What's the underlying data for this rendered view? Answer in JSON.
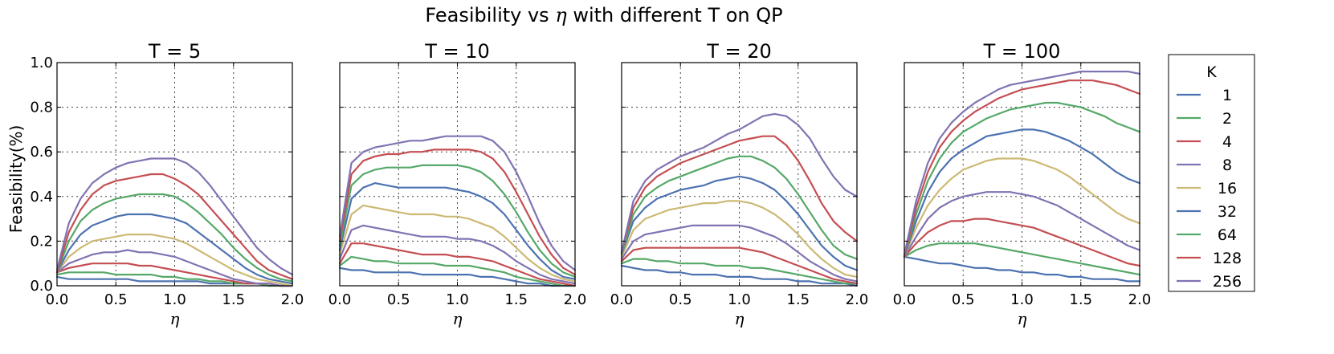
{
  "chart_data": {
    "type": "line",
    "title": "Feasibility vs η with different T on QP",
    "title_parts": {
      "before": "Feasibility vs ",
      "symbol": "η",
      "after": " with different T on QP"
    },
    "xlabel": "η",
    "ylabel": "Feasibility(%)",
    "xlim": [
      0.0,
      2.0
    ],
    "ylim": [
      0.0,
      1.0
    ],
    "xticks": [
      "0.0",
      "0.5",
      "1.0",
      "1.5",
      "2.0"
    ],
    "yticks": [
      "0.0",
      "0.2",
      "0.4",
      "0.6",
      "0.8",
      "1.0"
    ],
    "grid": true,
    "legend": {
      "title": "K",
      "placement": "outside-right",
      "entries": [
        "1",
        "2",
        "4",
        "8",
        "16",
        "32",
        "64",
        "128",
        "256"
      ]
    },
    "series_colors": [
      "#4c72b0",
      "#55a868",
      "#c44e52",
      "#8172b2",
      "#ccb974",
      "#4c72b0",
      "#55a868",
      "#c44e52",
      "#8172b2"
    ],
    "x": [
      0.0,
      0.1,
      0.2,
      0.3,
      0.4,
      0.5,
      0.6,
      0.7,
      0.8,
      0.9,
      1.0,
      1.1,
      1.2,
      1.3,
      1.4,
      1.5,
      1.6,
      1.7,
      1.8,
      1.9,
      2.0
    ],
    "panels": [
      {
        "title": "T = 5",
        "series": [
          {
            "name": "1",
            "values": [
              0.04,
              0.03,
              0.03,
              0.03,
              0.03,
              0.03,
              0.03,
              0.02,
              0.02,
              0.02,
              0.02,
              0.02,
              0.02,
              0.01,
              0.01,
              0.01,
              0.01,
              0.01,
              0.01,
              0.0,
              0.0
            ]
          },
          {
            "name": "2",
            "values": [
              0.05,
              0.06,
              0.06,
              0.06,
              0.06,
              0.05,
              0.05,
              0.05,
              0.05,
              0.04,
              0.04,
              0.03,
              0.03,
              0.02,
              0.02,
              0.01,
              0.01,
              0.01,
              0.0,
              0.0,
              0.0
            ]
          },
          {
            "name": "4",
            "values": [
              0.06,
              0.08,
              0.09,
              0.1,
              0.1,
              0.1,
              0.1,
              0.09,
              0.09,
              0.08,
              0.07,
              0.06,
              0.05,
              0.04,
              0.03,
              0.02,
              0.01,
              0.01,
              0.01,
              0.0,
              0.0
            ]
          },
          {
            "name": "8",
            "values": [
              0.06,
              0.1,
              0.12,
              0.14,
              0.15,
              0.15,
              0.16,
              0.15,
              0.15,
              0.14,
              0.13,
              0.11,
              0.09,
              0.07,
              0.05,
              0.03,
              0.02,
              0.01,
              0.01,
              0.0,
              0.0
            ]
          },
          {
            "name": "16",
            "values": [
              0.06,
              0.13,
              0.17,
              0.2,
              0.21,
              0.22,
              0.23,
              0.23,
              0.23,
              0.22,
              0.21,
              0.19,
              0.16,
              0.13,
              0.1,
              0.07,
              0.05,
              0.03,
              0.02,
              0.01,
              0.0
            ]
          },
          {
            "name": "32",
            "values": [
              0.06,
              0.16,
              0.23,
              0.27,
              0.29,
              0.31,
              0.32,
              0.32,
              0.32,
              0.31,
              0.3,
              0.28,
              0.24,
              0.2,
              0.16,
              0.12,
              0.08,
              0.05,
              0.03,
              0.02,
              0.01
            ]
          },
          {
            "name": "64",
            "values": [
              0.06,
              0.2,
              0.29,
              0.34,
              0.37,
              0.39,
              0.4,
              0.41,
              0.41,
              0.41,
              0.4,
              0.37,
              0.33,
              0.28,
              0.23,
              0.17,
              0.12,
              0.08,
              0.05,
              0.03,
              0.02
            ]
          },
          {
            "name": "128",
            "values": [
              0.06,
              0.24,
              0.34,
              0.41,
              0.45,
              0.47,
              0.48,
              0.49,
              0.5,
              0.5,
              0.48,
              0.45,
              0.41,
              0.35,
              0.29,
              0.23,
              0.17,
              0.11,
              0.07,
              0.05,
              0.03
            ]
          },
          {
            "name": "256",
            "values": [
              0.07,
              0.28,
              0.39,
              0.46,
              0.5,
              0.53,
              0.55,
              0.56,
              0.57,
              0.57,
              0.57,
              0.55,
              0.51,
              0.45,
              0.38,
              0.31,
              0.24,
              0.17,
              0.12,
              0.08,
              0.05
            ]
          }
        ]
      },
      {
        "title": "T = 10",
        "series": [
          {
            "name": "1",
            "values": [
              0.08,
              0.07,
              0.07,
              0.06,
              0.06,
              0.06,
              0.06,
              0.05,
              0.05,
              0.05,
              0.05,
              0.05,
              0.04,
              0.04,
              0.03,
              0.02,
              0.01,
              0.01,
              0.0,
              0.0,
              0.0
            ]
          },
          {
            "name": "2",
            "values": [
              0.09,
              0.13,
              0.12,
              0.11,
              0.11,
              0.1,
              0.1,
              0.1,
              0.1,
              0.09,
              0.09,
              0.09,
              0.08,
              0.07,
              0.06,
              0.04,
              0.03,
              0.02,
              0.01,
              0.0,
              0.0
            ]
          },
          {
            "name": "4",
            "values": [
              0.1,
              0.19,
              0.19,
              0.18,
              0.17,
              0.16,
              0.15,
              0.14,
              0.14,
              0.14,
              0.13,
              0.13,
              0.12,
              0.11,
              0.09,
              0.07,
              0.05,
              0.03,
              0.02,
              0.01,
              0.0
            ]
          },
          {
            "name": "8",
            "values": [
              0.12,
              0.25,
              0.27,
              0.26,
              0.25,
              0.24,
              0.23,
              0.22,
              0.22,
              0.22,
              0.21,
              0.21,
              0.2,
              0.18,
              0.15,
              0.11,
              0.08,
              0.05,
              0.03,
              0.02,
              0.01
            ]
          },
          {
            "name": "16",
            "values": [
              0.14,
              0.32,
              0.36,
              0.35,
              0.34,
              0.33,
              0.32,
              0.32,
              0.32,
              0.31,
              0.31,
              0.3,
              0.28,
              0.26,
              0.22,
              0.17,
              0.12,
              0.08,
              0.05,
              0.03,
              0.02
            ]
          },
          {
            "name": "32",
            "values": [
              0.16,
              0.39,
              0.44,
              0.46,
              0.45,
              0.44,
              0.44,
              0.44,
              0.44,
              0.44,
              0.43,
              0.42,
              0.4,
              0.37,
              0.32,
              0.25,
              0.18,
              0.12,
              0.07,
              0.04,
              0.03
            ]
          },
          {
            "name": "64",
            "values": [
              0.18,
              0.45,
              0.5,
              0.52,
              0.53,
              0.53,
              0.53,
              0.54,
              0.54,
              0.54,
              0.54,
              0.53,
              0.51,
              0.47,
              0.41,
              0.33,
              0.24,
              0.16,
              0.1,
              0.06,
              0.04
            ]
          },
          {
            "name": "128",
            "values": [
              0.2,
              0.5,
              0.56,
              0.58,
              0.59,
              0.59,
              0.6,
              0.6,
              0.61,
              0.61,
              0.61,
              0.61,
              0.6,
              0.57,
              0.51,
              0.42,
              0.32,
              0.22,
              0.14,
              0.08,
              0.05
            ]
          },
          {
            "name": "256",
            "values": [
              0.22,
              0.55,
              0.6,
              0.62,
              0.63,
              0.64,
              0.65,
              0.65,
              0.66,
              0.67,
              0.67,
              0.67,
              0.67,
              0.65,
              0.6,
              0.51,
              0.4,
              0.28,
              0.18,
              0.11,
              0.07
            ]
          }
        ]
      },
      {
        "title": "T = 20",
        "series": [
          {
            "name": "1",
            "values": [
              0.09,
              0.08,
              0.07,
              0.07,
              0.06,
              0.06,
              0.05,
              0.05,
              0.05,
              0.04,
              0.04,
              0.04,
              0.03,
              0.03,
              0.03,
              0.02,
              0.02,
              0.01,
              0.01,
              0.01,
              0.0
            ]
          },
          {
            "name": "2",
            "values": [
              0.1,
              0.12,
              0.12,
              0.11,
              0.11,
              0.1,
              0.1,
              0.1,
              0.09,
              0.09,
              0.09,
              0.08,
              0.08,
              0.07,
              0.06,
              0.05,
              0.04,
              0.03,
              0.02,
              0.01,
              0.01
            ]
          },
          {
            "name": "4",
            "values": [
              0.11,
              0.16,
              0.17,
              0.17,
              0.17,
              0.17,
              0.17,
              0.17,
              0.17,
              0.17,
              0.17,
              0.16,
              0.15,
              0.13,
              0.11,
              0.09,
              0.07,
              0.05,
              0.03,
              0.02,
              0.01
            ]
          },
          {
            "name": "8",
            "values": [
              0.12,
              0.2,
              0.23,
              0.24,
              0.25,
              0.26,
              0.27,
              0.27,
              0.27,
              0.27,
              0.27,
              0.26,
              0.24,
              0.22,
              0.19,
              0.15,
              0.11,
              0.08,
              0.05,
              0.03,
              0.02
            ]
          },
          {
            "name": "16",
            "values": [
              0.13,
              0.25,
              0.3,
              0.32,
              0.34,
              0.35,
              0.36,
              0.37,
              0.37,
              0.38,
              0.38,
              0.37,
              0.35,
              0.32,
              0.28,
              0.23,
              0.17,
              0.12,
              0.08,
              0.05,
              0.04
            ]
          },
          {
            "name": "32",
            "values": [
              0.14,
              0.29,
              0.35,
              0.39,
              0.41,
              0.43,
              0.44,
              0.45,
              0.47,
              0.48,
              0.49,
              0.48,
              0.46,
              0.43,
              0.38,
              0.32,
              0.25,
              0.18,
              0.13,
              0.09,
              0.07
            ]
          },
          {
            "name": "64",
            "values": [
              0.14,
              0.32,
              0.4,
              0.44,
              0.47,
              0.49,
              0.51,
              0.53,
              0.55,
              0.57,
              0.58,
              0.58,
              0.56,
              0.53,
              0.48,
              0.41,
              0.33,
              0.25,
              0.18,
              0.14,
              0.12
            ]
          },
          {
            "name": "128",
            "values": [
              0.15,
              0.35,
              0.44,
              0.49,
              0.52,
              0.55,
              0.57,
              0.59,
              0.61,
              0.63,
              0.65,
              0.66,
              0.67,
              0.67,
              0.63,
              0.56,
              0.47,
              0.37,
              0.29,
              0.24,
              0.2
            ]
          },
          {
            "name": "256",
            "values": [
              0.15,
              0.38,
              0.47,
              0.52,
              0.55,
              0.58,
              0.6,
              0.62,
              0.65,
              0.68,
              0.7,
              0.73,
              0.76,
              0.77,
              0.76,
              0.72,
              0.66,
              0.57,
              0.49,
              0.43,
              0.4
            ]
          }
        ]
      },
      {
        "title": "T = 100",
        "series": [
          {
            "name": "1",
            "values": [
              0.13,
              0.12,
              0.11,
              0.1,
              0.1,
              0.09,
              0.08,
              0.08,
              0.07,
              0.07,
              0.06,
              0.06,
              0.05,
              0.05,
              0.04,
              0.04,
              0.03,
              0.03,
              0.03,
              0.02,
              0.02
            ]
          },
          {
            "name": "2",
            "values": [
              0.13,
              0.16,
              0.18,
              0.19,
              0.19,
              0.19,
              0.19,
              0.18,
              0.17,
              0.16,
              0.15,
              0.14,
              0.13,
              0.12,
              0.11,
              0.1,
              0.09,
              0.08,
              0.07,
              0.06,
              0.05
            ]
          },
          {
            "name": "4",
            "values": [
              0.13,
              0.19,
              0.24,
              0.27,
              0.29,
              0.29,
              0.3,
              0.3,
              0.29,
              0.28,
              0.27,
              0.26,
              0.24,
              0.22,
              0.2,
              0.18,
              0.16,
              0.14,
              0.12,
              0.1,
              0.09
            ]
          },
          {
            "name": "8",
            "values": [
              0.13,
              0.22,
              0.3,
              0.35,
              0.38,
              0.4,
              0.41,
              0.42,
              0.42,
              0.42,
              0.41,
              0.4,
              0.38,
              0.36,
              0.33,
              0.3,
              0.27,
              0.24,
              0.21,
              0.18,
              0.16
            ]
          },
          {
            "name": "16",
            "values": [
              0.13,
              0.26,
              0.36,
              0.43,
              0.48,
              0.52,
              0.54,
              0.56,
              0.57,
              0.57,
              0.57,
              0.56,
              0.54,
              0.52,
              0.49,
              0.45,
              0.41,
              0.37,
              0.33,
              0.3,
              0.28
            ]
          },
          {
            "name": "32",
            "values": [
              0.13,
              0.29,
              0.42,
              0.51,
              0.57,
              0.61,
              0.64,
              0.67,
              0.68,
              0.69,
              0.7,
              0.7,
              0.69,
              0.67,
              0.65,
              0.62,
              0.59,
              0.55,
              0.51,
              0.48,
              0.46
            ]
          },
          {
            "name": "64",
            "values": [
              0.13,
              0.32,
              0.47,
              0.57,
              0.64,
              0.69,
              0.72,
              0.75,
              0.77,
              0.79,
              0.8,
              0.81,
              0.82,
              0.82,
              0.81,
              0.8,
              0.78,
              0.76,
              0.73,
              0.71,
              0.69
            ]
          },
          {
            "name": "128",
            "values": [
              0.13,
              0.35,
              0.51,
              0.62,
              0.69,
              0.74,
              0.78,
              0.81,
              0.84,
              0.86,
              0.88,
              0.89,
              0.9,
              0.91,
              0.92,
              0.92,
              0.92,
              0.91,
              0.9,
              0.88,
              0.86
            ]
          },
          {
            "name": "256",
            "values": [
              0.14,
              0.38,
              0.55,
              0.66,
              0.73,
              0.78,
              0.82,
              0.85,
              0.88,
              0.9,
              0.91,
              0.92,
              0.93,
              0.94,
              0.95,
              0.96,
              0.96,
              0.96,
              0.96,
              0.96,
              0.95
            ]
          }
        ]
      }
    ]
  }
}
